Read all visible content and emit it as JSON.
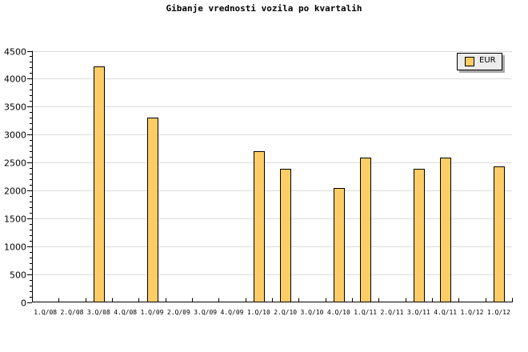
{
  "chart_data": {
    "type": "bar",
    "title": "Gibanje vrednosti vozila po kvartalih",
    "xlabel": "",
    "ylabel": "",
    "categories": [
      "1.Q/08",
      "2.Q/08",
      "3.Q/08",
      "4.Q/08",
      "1.Q/09",
      "2.Q/09",
      "3.Q/09",
      "4.Q/09",
      "1.Q/10",
      "2.Q/10",
      "3.Q/10",
      "4.Q/10",
      "1.Q/11",
      "2.Q/11",
      "3.Q/11",
      "4.Q/11",
      "1.Q/12",
      "1.Q/12"
    ],
    "series": [
      {
        "name": "EUR",
        "values": [
          0,
          0,
          4220,
          0,
          3300,
          0,
          0,
          0,
          2700,
          2380,
          0,
          2040,
          2580,
          0,
          2380,
          2580,
          0,
          2430
        ]
      }
    ],
    "ylim": [
      0,
      4500
    ],
    "yticks": [
      0,
      500,
      1000,
      1500,
      2000,
      2500,
      3000,
      3500,
      4000,
      4500
    ],
    "grid": true,
    "legend": "top-right",
    "colors": {
      "bar": "#ffcc66",
      "grid": "#dddddd",
      "legend_bg": "#ececec"
    }
  }
}
